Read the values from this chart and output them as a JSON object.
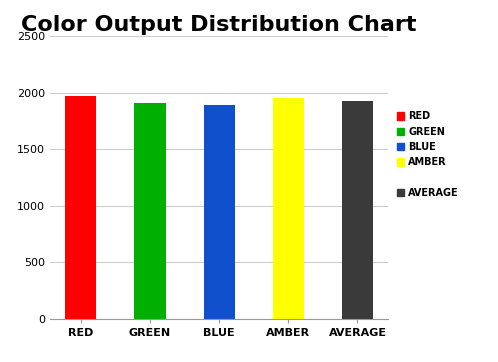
{
  "title": "Color Output Distribution Chart",
  "categories": [
    "RED",
    "GREEN",
    "BLUE",
    "AMBER",
    "AVERAGE"
  ],
  "values": [
    1970,
    1905,
    1895,
    1955,
    1930
  ],
  "bar_colors": [
    "#ff0000",
    "#00b000",
    "#1050cc",
    "#ffff00",
    "#3a3a3a"
  ],
  "legend_labels": [
    "RED",
    "GREEN",
    "BLUE",
    "AMBER",
    "",
    "AVERAGE"
  ],
  "legend_colors": [
    "#ff0000",
    "#00b000",
    "#1050cc",
    "#ffff00",
    null,
    "#3a3a3a"
  ],
  "ylim": [
    0,
    2500
  ],
  "yticks": [
    0,
    500,
    1000,
    1500,
    2000,
    2500
  ],
  "title_fontsize": 16,
  "tick_fontsize": 8,
  "background_color": "#ffffff",
  "grid_color": "#cccccc",
  "bar_width": 0.45
}
